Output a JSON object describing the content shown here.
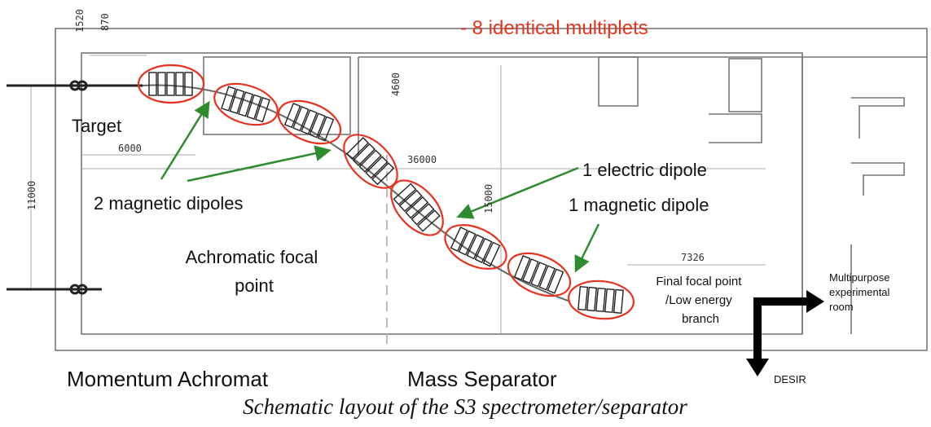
{
  "header": {
    "note": "- 8 identical multiplets"
  },
  "dimensions": {
    "d1520": 1520,
    "d870": 870,
    "d4600": 4600,
    "d6000": 6000,
    "d36000": 36000,
    "d11000": 11000,
    "d15000": 15000,
    "d7326": 7326
  },
  "labels": {
    "target": "Target",
    "magnetic_dipoles": "2 magnetic dipoles",
    "electric_dipole": "1 electric dipole",
    "magnetic_dipole": "1 magnetic dipole",
    "focal_point": [
      "Achromatic focal",
      "point"
    ],
    "final_focal": [
      "Final focal point",
      "/Low energy",
      "branch"
    ],
    "room": [
      "Multipurpose",
      "experimental",
      "room"
    ],
    "desir": "DESIR"
  },
  "sections": [
    "Momentum Achromat",
    "Mass Separator"
  ],
  "caption": "Schematic layout of the S3 spectrometer/separator"
}
